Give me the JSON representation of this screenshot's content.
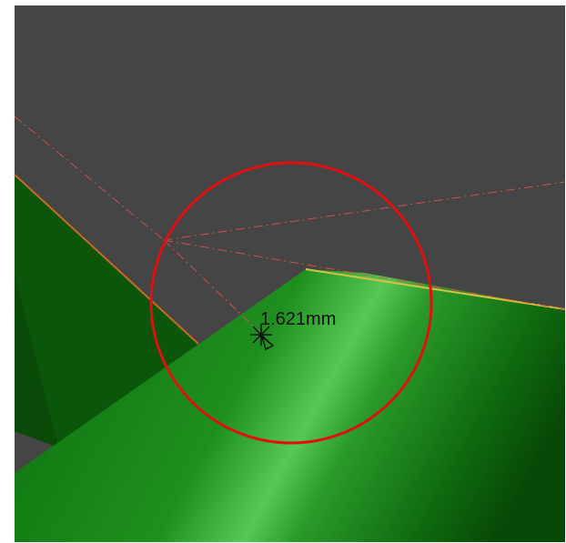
{
  "viewport": {
    "background_color": "#454545",
    "frame_color": "#ffffff"
  },
  "model": {
    "top_face_color": "#1f8a1f",
    "highlight_color": "#4fc44f",
    "side_face_color": "#0e5a0e",
    "dark_face_color": "#064006",
    "edge_highlight_color": "#e0c040",
    "edge_orange_color": "#d07020"
  },
  "guides": {
    "construction_line_color": "#d05050"
  },
  "measurement": {
    "label": "1.621mm",
    "snap_circle_color": "#e01010",
    "cursor_icon": "crosshair-snap-icon"
  }
}
